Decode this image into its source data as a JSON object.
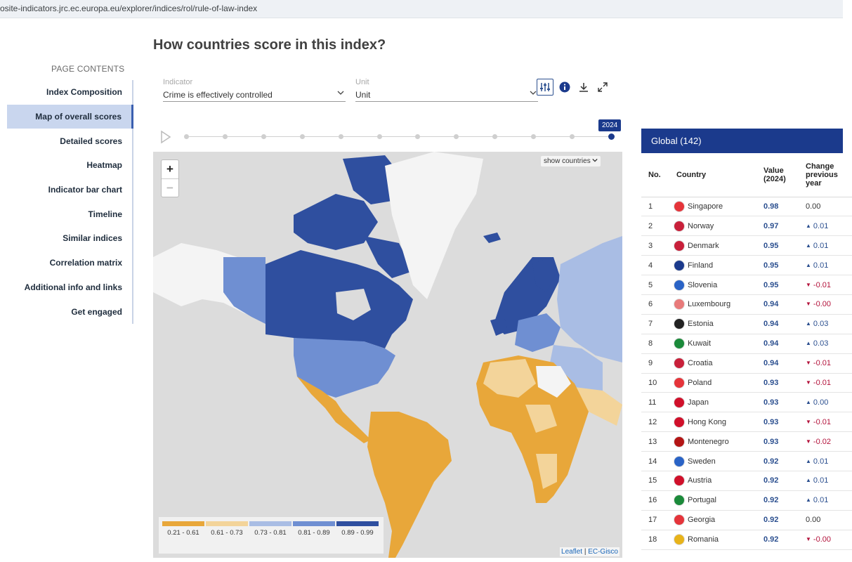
{
  "browser": {
    "url": "osite-indicators.jrc.ec.europa.eu/explorer/indices/rol/rule-of-law-index"
  },
  "page": {
    "title": "How countries score in this index?"
  },
  "toc": {
    "header": "PAGE CONTENTS",
    "items": [
      {
        "label": "Index Composition",
        "active": false
      },
      {
        "label": "Map of overall scores",
        "active": true
      },
      {
        "label": "Detailed scores",
        "active": false
      },
      {
        "label": "Heatmap",
        "active": false
      },
      {
        "label": "Indicator bar chart",
        "active": false
      },
      {
        "label": "Timeline",
        "active": false
      },
      {
        "label": "Similar indices",
        "active": false
      },
      {
        "label": "Correlation matrix",
        "active": false
      },
      {
        "label": "Additional info and links",
        "active": false
      },
      {
        "label": "Get engaged",
        "active": false
      }
    ]
  },
  "filters": {
    "indicator_label": "Indicator",
    "indicator_value": "Crime is effectively controlled",
    "unit_label": "Unit",
    "unit_value": "Unit"
  },
  "toolbar": {
    "icons": [
      "sliders-icon",
      "info-icon",
      "download-icon",
      "expand-icon"
    ]
  },
  "timeline": {
    "current_year": "2024",
    "steps": 12,
    "current_index": 11
  },
  "map": {
    "show_countries_label": "show countries",
    "legend": [
      {
        "range": "0.21 - 0.61",
        "color": "#e8a73a"
      },
      {
        "range": "0.61 - 0.73",
        "color": "#f3d49a"
      },
      {
        "range": "0.73 - 0.81",
        "color": "#a9bde4"
      },
      {
        "range": "0.81 - 0.89",
        "color": "#6f8fd2"
      },
      {
        "range": "0.89 - 0.99",
        "color": "#2f4f9f"
      }
    ],
    "attribution_leaflet": "Leaflet",
    "attribution_sep": " | ",
    "attribution_source": "EC-Gisco"
  },
  "ranking": {
    "title": "Global (142)",
    "columns": {
      "no": "No.",
      "country": "Country",
      "value": "Value (2024)",
      "change": "Change previous year"
    },
    "rows": [
      {
        "no": "1",
        "country": "Singapore",
        "value": "0.98",
        "change": "0.00",
        "dir": "none",
        "flag": "#e5343a"
      },
      {
        "no": "2",
        "country": "Norway",
        "value": "0.97",
        "change": "0.01",
        "dir": "up",
        "flag": "#c8203a"
      },
      {
        "no": "3",
        "country": "Denmark",
        "value": "0.95",
        "change": "0.01",
        "dir": "up",
        "flag": "#c8203a"
      },
      {
        "no": "4",
        "country": "Finland",
        "value": "0.95",
        "change": "0.01",
        "dir": "up",
        "flag": "#1b3a8c"
      },
      {
        "no": "5",
        "country": "Slovenia",
        "value": "0.95",
        "change": "-0.01",
        "dir": "down",
        "flag": "#2a63c6"
      },
      {
        "no": "6",
        "country": "Luxembourg",
        "value": "0.94",
        "change": "-0.00",
        "dir": "down",
        "flag": "#e87a7a"
      },
      {
        "no": "7",
        "country": "Estonia",
        "value": "0.94",
        "change": "0.03",
        "dir": "up",
        "flag": "#222222"
      },
      {
        "no": "8",
        "country": "Kuwait",
        "value": "0.94",
        "change": "0.03",
        "dir": "up",
        "flag": "#1b8a3a"
      },
      {
        "no": "9",
        "country": "Croatia",
        "value": "0.94",
        "change": "-0.01",
        "dir": "down",
        "flag": "#c8203a"
      },
      {
        "no": "10",
        "country": "Poland",
        "value": "0.93",
        "change": "-0.01",
        "dir": "down",
        "flag": "#e5343a"
      },
      {
        "no": "11",
        "country": "Japan",
        "value": "0.93",
        "change": "0.00",
        "dir": "up",
        "flag": "#d0102a"
      },
      {
        "no": "12",
        "country": "Hong Kong",
        "value": "0.93",
        "change": "-0.01",
        "dir": "down",
        "flag": "#d0102a"
      },
      {
        "no": "13",
        "country": "Montenegro",
        "value": "0.93",
        "change": "-0.02",
        "dir": "down",
        "flag": "#b31515"
      },
      {
        "no": "14",
        "country": "Sweden",
        "value": "0.92",
        "change": "0.01",
        "dir": "up",
        "flag": "#2a63c6"
      },
      {
        "no": "15",
        "country": "Austria",
        "value": "0.92",
        "change": "0.01",
        "dir": "up",
        "flag": "#d0102a"
      },
      {
        "no": "16",
        "country": "Portugal",
        "value": "0.92",
        "change": "0.01",
        "dir": "up",
        "flag": "#1b8a3a"
      },
      {
        "no": "17",
        "country": "Georgia",
        "value": "0.92",
        "change": "0.00",
        "dir": "none",
        "flag": "#e5343a"
      },
      {
        "no": "18",
        "country": "Romania",
        "value": "0.92",
        "change": "-0.00",
        "dir": "down",
        "flag": "#e8b31a"
      }
    ]
  }
}
